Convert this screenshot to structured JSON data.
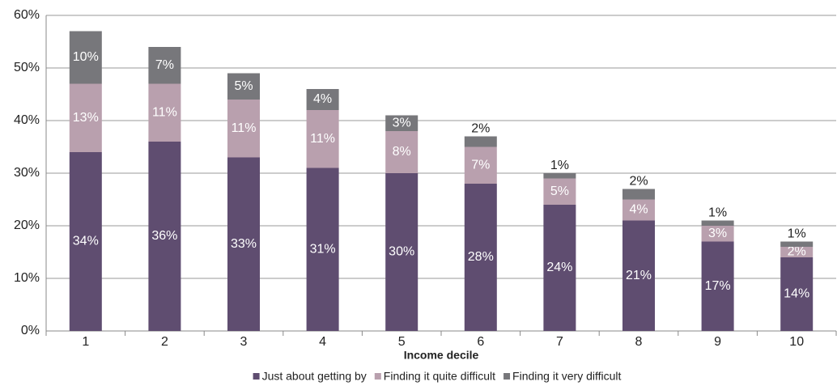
{
  "chart_data": {
    "type": "stacked_bar",
    "x_label": "Income decile",
    "categories": [
      "1",
      "2",
      "3",
      "4",
      "5",
      "6",
      "7",
      "8",
      "9",
      "10"
    ],
    "series": [
      {
        "name": "Just about getting by",
        "color": "#5f4d70",
        "values": [
          34,
          36,
          33,
          31,
          30,
          28,
          24,
          21,
          17,
          14
        ],
        "value_labels": [
          "34%",
          "36%",
          "33%",
          "31%",
          "30%",
          "28%",
          "24%",
          "21%",
          "17%",
          "14%"
        ]
      },
      {
        "name": "Finding it quite difficult",
        "color": "#b9a0ae",
        "values": [
          13,
          11,
          11,
          11,
          8,
          7,
          5,
          4,
          3,
          2
        ],
        "value_labels": [
          "13%",
          "11%",
          "11%",
          "11%",
          "8%",
          "7%",
          "5%",
          "4%",
          "3%",
          "2%"
        ]
      },
      {
        "name": "Finding it very difficult",
        "color": "#77777b",
        "values": [
          10,
          7,
          5,
          4,
          3,
          2,
          1,
          2,
          1,
          1
        ],
        "value_labels": [
          "10%",
          "7%",
          "5%",
          "4%",
          "3%",
          "2%",
          "1%",
          "2%",
          "1%",
          "1%"
        ]
      }
    ],
    "ylim": [
      0,
      60
    ],
    "yticks": [
      {
        "value": 0,
        "label": "0%"
      },
      {
        "value": 10,
        "label": "10%"
      },
      {
        "value": 20,
        "label": "20%"
      },
      {
        "value": 30,
        "label": "30%"
      },
      {
        "value": 40,
        "label": "40%"
      },
      {
        "value": 50,
        "label": "50%"
      },
      {
        "value": 60,
        "label": "60%"
      }
    ],
    "grid": true,
    "legend": "bottom"
  }
}
